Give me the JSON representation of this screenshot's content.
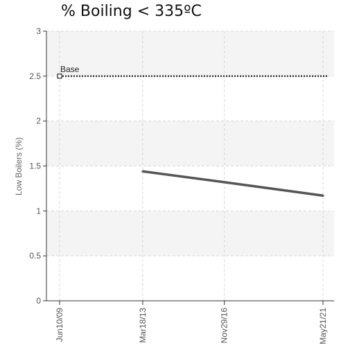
{
  "chart_data": {
    "type": "line",
    "title": "% Boiling < 335ºC",
    "xlabel": "",
    "ylabel": "Low Boilers (%)",
    "x_ticks": [
      "Jun10/09",
      "Mar18/13",
      "Nov29/16",
      "May21/21"
    ],
    "x_range": [
      "2009-06-10",
      "2021-06-20"
    ],
    "ylim": [
      0,
      3
    ],
    "y_ticks": [
      "0",
      "0.5",
      "1",
      "1.5",
      "2",
      "2.5",
      "3"
    ],
    "grid": true,
    "series": [
      {
        "name": "",
        "points": [
          {
            "x": "2013-03-18",
            "y": 1.44
          },
          {
            "x": "2016-11-29",
            "y": 1.32
          },
          {
            "x": "2021-05-21",
            "y": 1.17
          }
        ]
      }
    ],
    "reference_lines": [
      {
        "label": "Base",
        "y": 2.5,
        "x_start": "2009-06-10",
        "style": "dotted"
      }
    ]
  }
}
